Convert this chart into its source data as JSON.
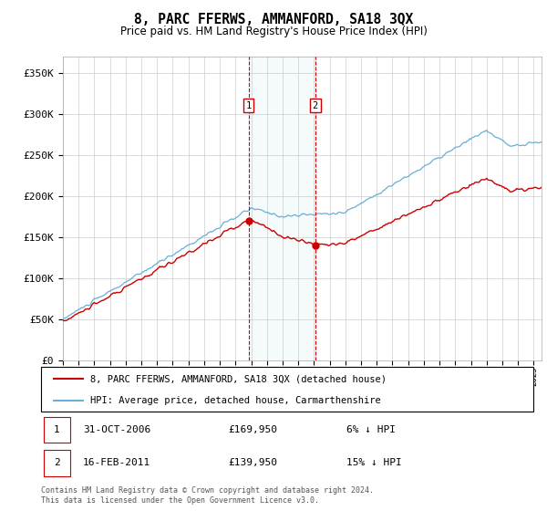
{
  "title": "8, PARC FFERWS, AMMANFORD, SA18 3QX",
  "subtitle": "Price paid vs. HM Land Registry's House Price Index (HPI)",
  "legend_line1": "8, PARC FFERWS, AMMANFORD, SA18 3QX (detached house)",
  "legend_line2": "HPI: Average price, detached house, Carmarthenshire",
  "annotation1_date": "31-OCT-2006",
  "annotation1_price": "£169,950",
  "annotation1_hpi": "6% ↓ HPI",
  "annotation2_date": "16-FEB-2011",
  "annotation2_price": "£139,950",
  "annotation2_hpi": "15% ↓ HPI",
  "footer": "Contains HM Land Registry data © Crown copyright and database right 2024.\nThis data is licensed under the Open Government Licence v3.0.",
  "hpi_color": "#6baed6",
  "price_color": "#cc0000",
  "annotation_color": "#cc0000",
  "grid_color": "#cccccc",
  "ylim": [
    0,
    370000
  ],
  "yticks": [
    0,
    50000,
    100000,
    150000,
    200000,
    250000,
    300000,
    350000
  ],
  "ytick_labels": [
    "£0",
    "£50K",
    "£100K",
    "£150K",
    "£200K",
    "£250K",
    "£300K",
    "£350K"
  ],
  "sale1_year": 2006.83,
  "sale1_price": 169950,
  "sale2_year": 2011.12,
  "sale2_price": 139950,
  "xmin": 1995,
  "xmax": 2025.5
}
